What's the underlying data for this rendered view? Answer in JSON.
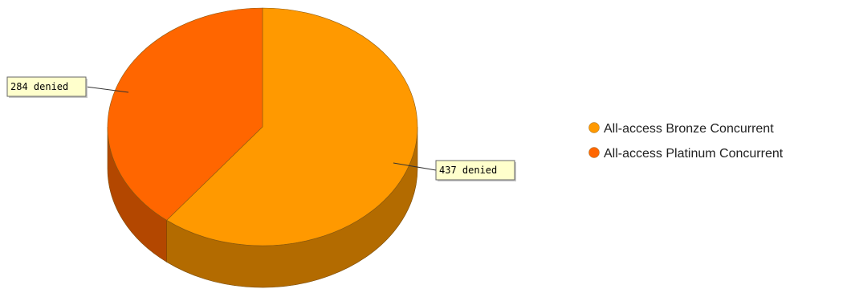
{
  "chart_data": {
    "type": "pie",
    "title": "",
    "slices": [
      {
        "name": "All-access Bronze Concurrent",
        "value": 437,
        "label": "437 denied",
        "color": "#ff9900",
        "side_color": "#b36b00"
      },
      {
        "name": "All-access Platinum Concurrent",
        "value": 284,
        "label": "284 denied",
        "color": "#ff6600",
        "side_color": "#b34700"
      }
    ],
    "legend_position": "right",
    "style": "3d"
  }
}
